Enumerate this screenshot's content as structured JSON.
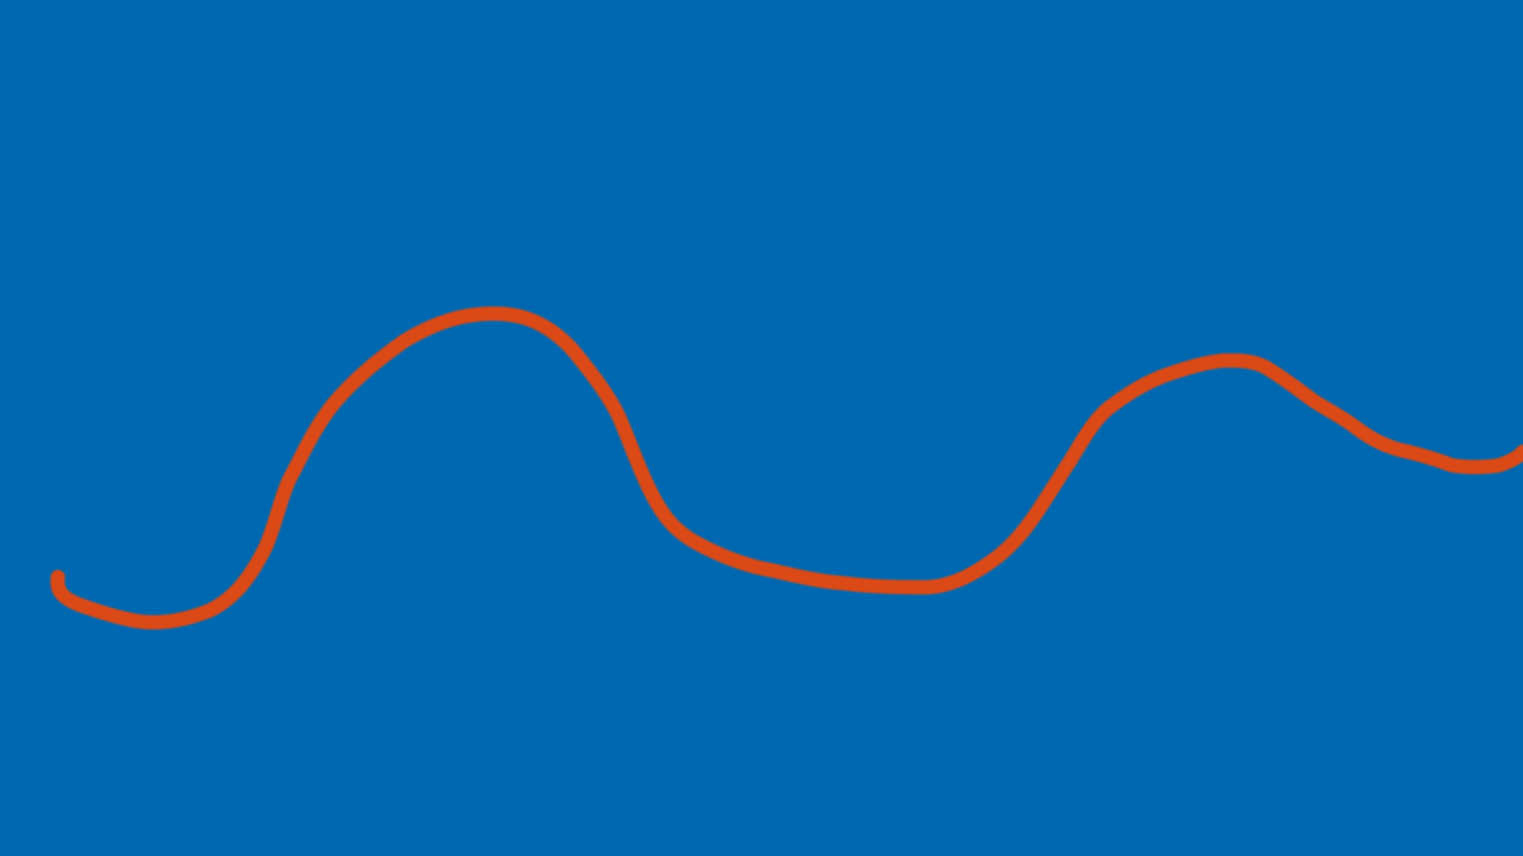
{
  "colors": {
    "background": "#0068B0",
    "stroke": "#DB4A14"
  },
  "content": {
    "kind": "freehand-stroke-on-solid-background",
    "stroke_style": "single continuous wavy line, round caps, soft edge"
  }
}
